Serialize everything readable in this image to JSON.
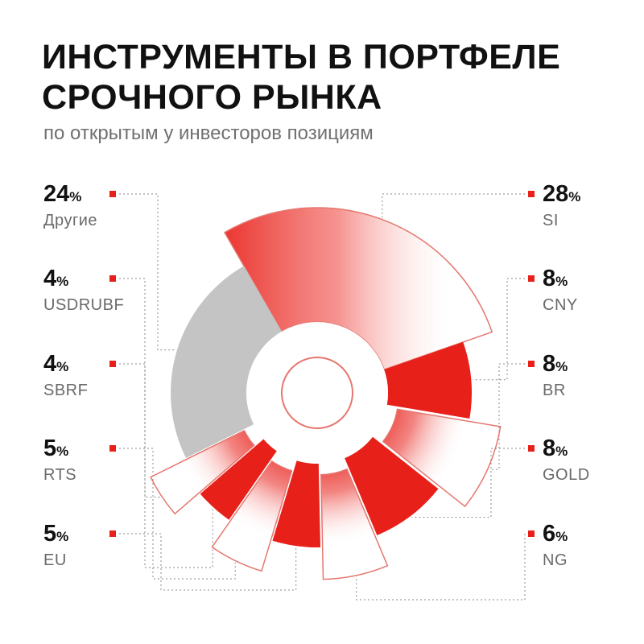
{
  "title_lines": [
    "ИНСТРУМЕНТЫ В ПОРТФЕЛЕ",
    "СРОЧНОГО РЫНКА"
  ],
  "subtitle": "по открытым у инвесторов позициям",
  "colors": {
    "accent": "#e8201a",
    "gray": "#c4c4c4",
    "outline": "#e5776f",
    "text": "#111111",
    "muted": "#6a6a6a"
  },
  "chart_data": {
    "type": "pie",
    "title": "ИНСТРУМЕНТЫ В ПОРТФЕЛЕ СРОЧНОГО РЫНКА",
    "subtitle": "по открытым у инвесторов позициям",
    "unit": "%",
    "slices": [
      {
        "name": "SI",
        "value": 28,
        "side": "right",
        "style": "exploded-gradient"
      },
      {
        "name": "CNY",
        "value": 8,
        "side": "right",
        "style": "solid"
      },
      {
        "name": "BR",
        "value": 8,
        "side": "right",
        "style": "exploded-fade"
      },
      {
        "name": "GOLD",
        "value": 8,
        "side": "right",
        "style": "solid"
      },
      {
        "name": "NG",
        "value": 6,
        "side": "right",
        "style": "exploded-fade"
      },
      {
        "name": "EU",
        "value": 5,
        "side": "left",
        "style": "solid"
      },
      {
        "name": "RTS",
        "value": 5,
        "side": "left",
        "style": "exploded-fade"
      },
      {
        "name": "SBRF",
        "value": 4,
        "side": "left",
        "style": "solid"
      },
      {
        "name": "USDRUBF",
        "value": 4,
        "side": "left",
        "style": "exploded-fade"
      },
      {
        "name": "Другие",
        "value": 24,
        "side": "left",
        "style": "gray"
      }
    ]
  }
}
